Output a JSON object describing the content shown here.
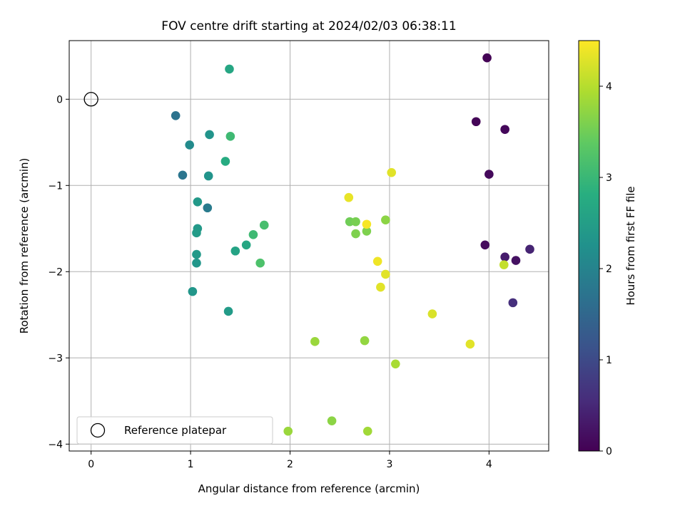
{
  "chart_data": {
    "type": "scatter",
    "title": "FOV centre drift starting at 2024/02/03 06:38:11",
    "xlabel": "Angular distance from reference (arcmin)",
    "ylabel": "Rotation from reference (arcmin)",
    "xlim": [
      -0.22,
      4.6
    ],
    "ylim": [
      -4.08,
      0.68
    ],
    "xticks": [
      0,
      1,
      2,
      3,
      4
    ],
    "yticks": [
      -4,
      -3,
      -2,
      -1,
      0
    ],
    "xtick_labels": [
      "0",
      "1",
      "2",
      "3",
      "4"
    ],
    "ytick_labels": [
      "−4",
      "−3",
      "−2",
      "−1",
      "0"
    ],
    "grid": true,
    "colormap": "viridis",
    "colorbar": {
      "label": "Hours from first FF file",
      "range": [
        0,
        4.5
      ],
      "ticks": [
        0,
        1,
        2,
        3,
        4
      ],
      "tick_labels": [
        "0",
        "1",
        "2",
        "3",
        "4"
      ]
    },
    "legend": {
      "location": "lower-left",
      "entries": [
        {
          "label": "Reference platepar",
          "marker": "open-circle"
        }
      ]
    },
    "reference_point": {
      "x": 0,
      "y": 0
    },
    "points": [
      {
        "x": 3.98,
        "y": 0.48,
        "c": 0.02
      },
      {
        "x": 3.87,
        "y": -0.26,
        "c": 0.05
      },
      {
        "x": 4.16,
        "y": -0.35,
        "c": 0.08
      },
      {
        "x": 4.0,
        "y": -0.87,
        "c": 0.1
      },
      {
        "x": 3.96,
        "y": -1.69,
        "c": 0.12
      },
      {
        "x": 4.27,
        "y": -1.87,
        "c": 0.2
      },
      {
        "x": 4.16,
        "y": -1.83,
        "c": 0.35
      },
      {
        "x": 4.41,
        "y": -1.74,
        "c": 0.45
      },
      {
        "x": 4.24,
        "y": -2.36,
        "c": 0.6
      },
      {
        "x": 0.85,
        "y": -0.19,
        "c": 1.7
      },
      {
        "x": 0.92,
        "y": -0.88,
        "c": 1.75
      },
      {
        "x": 1.17,
        "y": -1.26,
        "c": 1.85
      },
      {
        "x": 0.99,
        "y": -0.53,
        "c": 2.15
      },
      {
        "x": 1.19,
        "y": -0.41,
        "c": 2.3
      },
      {
        "x": 1.18,
        "y": -0.89,
        "c": 2.3
      },
      {
        "x": 1.07,
        "y": -1.19,
        "c": 2.4
      },
      {
        "x": 1.07,
        "y": -1.5,
        "c": 2.4
      },
      {
        "x": 1.06,
        "y": -1.55,
        "c": 2.45
      },
      {
        "x": 1.06,
        "y": -1.8,
        "c": 2.4
      },
      {
        "x": 1.06,
        "y": -1.9,
        "c": 2.35
      },
      {
        "x": 1.02,
        "y": -2.23,
        "c": 2.35
      },
      {
        "x": 1.38,
        "y": -2.46,
        "c": 2.45
      },
      {
        "x": 1.39,
        "y": 0.35,
        "c": 2.65
      },
      {
        "x": 1.35,
        "y": -0.72,
        "c": 2.75
      },
      {
        "x": 1.4,
        "y": -0.43,
        "c": 3.05
      },
      {
        "x": 1.45,
        "y": -1.76,
        "c": 2.6
      },
      {
        "x": 1.56,
        "y": -1.69,
        "c": 2.65
      },
      {
        "x": 1.63,
        "y": -1.57,
        "c": 3.05
      },
      {
        "x": 1.74,
        "y": -1.46,
        "c": 3.15
      },
      {
        "x": 1.7,
        "y": -1.9,
        "c": 3.2
      },
      {
        "x": 2.6,
        "y": -1.42,
        "c": 3.5
      },
      {
        "x": 2.66,
        "y": -1.42,
        "c": 3.55
      },
      {
        "x": 2.66,
        "y": -1.56,
        "c": 3.6
      },
      {
        "x": 2.77,
        "y": -1.53,
        "c": 3.6
      },
      {
        "x": 2.96,
        "y": -1.4,
        "c": 3.7
      },
      {
        "x": 2.75,
        "y": -2.8,
        "c": 3.75
      },
      {
        "x": 2.25,
        "y": -2.81,
        "c": 3.8
      },
      {
        "x": 2.42,
        "y": -3.73,
        "c": 3.7
      },
      {
        "x": 1.98,
        "y": -3.85,
        "c": 3.8
      },
      {
        "x": 2.78,
        "y": -3.85,
        "c": 3.85
      },
      {
        "x": 3.06,
        "y": -3.07,
        "c": 3.9
      },
      {
        "x": 4.15,
        "y": -1.92,
        "c": 4.1
      },
      {
        "x": 2.59,
        "y": -1.14,
        "c": 4.35
      },
      {
        "x": 3.02,
        "y": -0.85,
        "c": 4.3
      },
      {
        "x": 2.77,
        "y": -1.45,
        "c": 4.45
      },
      {
        "x": 2.88,
        "y": -1.88,
        "c": 4.4
      },
      {
        "x": 2.96,
        "y": -2.03,
        "c": 4.3
      },
      {
        "x": 2.91,
        "y": -2.18,
        "c": 4.3
      },
      {
        "x": 3.43,
        "y": -2.49,
        "c": 4.25
      },
      {
        "x": 3.81,
        "y": -2.84,
        "c": 4.3
      }
    ]
  }
}
